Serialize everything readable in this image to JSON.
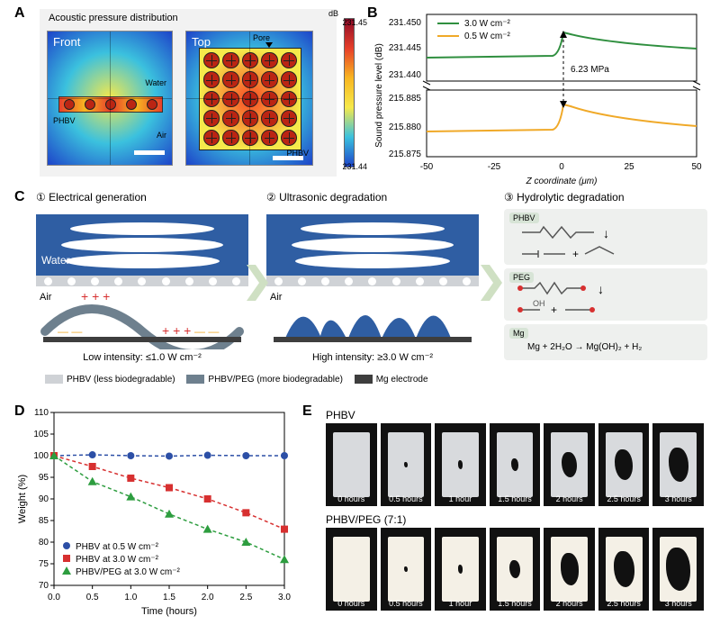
{
  "panelA": {
    "title": "Acoustic pressure distribution",
    "front_label": "Front",
    "top_label": "Top",
    "water_label": "Water",
    "air_label": "Air",
    "phbv_label": "PHBV",
    "pore_label": "Pore",
    "cbar_unit": "dB",
    "cbar_max": "231.45",
    "cbar_min": "231.44",
    "colors": {
      "heatmap_stops": [
        "#8c0b28",
        "#e73f2a",
        "#f8b621",
        "#f6e94b",
        "#3bc1de",
        "#1d44c9"
      ]
    }
  },
  "panelB": {
    "ylabel": "Sound pressure level (dB)",
    "xlabel": "Z coordinate (μm)",
    "series": [
      {
        "name": "3.0 W cm⁻²",
        "color": "#2f8f3f"
      },
      {
        "name": "0.5 W cm⁻²",
        "color": "#f0a928"
      }
    ],
    "gap_label": "6.23 MPa",
    "xticks": [
      "-50",
      "-25",
      "0",
      "25",
      "50"
    ],
    "yticks_top": [
      "231.440",
      "231.445",
      "231.450"
    ],
    "yticks_bot": [
      "215.875",
      "215.880",
      "215.885"
    ]
  },
  "panelC": {
    "sub1_title": "① Electrical generation",
    "sub2_title": "② Ultrasonic degradation",
    "sub3_title": "③ Hydrolytic degradation",
    "water": "Water",
    "air": "Air",
    "low_intensity": "Low intensity: ≤1.0 W cm⁻²",
    "high_intensity": "High intensity: ≥3.0 W cm⁻²",
    "legend1": "PHBV (less biodegradable)",
    "legend2": "PHBV/PEG (more biodegradable)",
    "legend3": "Mg electrode",
    "mat1": "PHBV",
    "mat2": "PEG",
    "mat3": "Mg",
    "mg_eq": "Mg + 2H₂O → Mg(OH)₂ + H₂",
    "colors": {
      "water": "#2f5ea3",
      "phbv": "#cfd2d6",
      "phbv_peg": "#6e808e",
      "mg": "#3e3e3e"
    }
  },
  "panelD": {
    "ylabel": "Weight (%)",
    "xlabel": "Time (hours)",
    "xticks": [
      "0.0",
      "0.5",
      "1.0",
      "1.5",
      "2.0",
      "2.5",
      "3.0"
    ],
    "yticks": [
      "70",
      "75",
      "80",
      "85",
      "90",
      "95",
      "100",
      "105",
      "110"
    ],
    "series": [
      {
        "name": "PHBV at 0.5 W cm⁻²",
        "color": "#2c4fa6",
        "marker": "circle",
        "y": [
          100,
          100.2,
          100,
          99.9,
          100.1,
          100,
          100
        ]
      },
      {
        "name": "PHBV at 3.0 W cm⁻²",
        "color": "#d73030",
        "marker": "square",
        "y": [
          100,
          97.5,
          94.8,
          92.6,
          90,
          86.8,
          83
        ]
      },
      {
        "name": "PHBV/PEG at 3.0 W cm⁻²",
        "color": "#2d9d3f",
        "marker": "triangle",
        "y": [
          100,
          94,
          90.5,
          86.5,
          83,
          80,
          76
        ]
      }
    ],
    "ylim": [
      70,
      110
    ]
  },
  "panelE": {
    "row1_label": "PHBV",
    "row2_label": "PHBV/PEG (7:1)",
    "times": [
      "0 hours",
      "0.5 hours",
      "1 hour",
      "1.5 hours",
      "2 hours",
      "2.5 hours",
      "3 hours"
    ],
    "film_color_row1": "#d8dadd",
    "film_color_row2": "#f4f0e6",
    "hole_fracs_row1": [
      0,
      0.01,
      0.02,
      0.05,
      0.2,
      0.28,
      0.35
    ],
    "hole_fracs_row2": [
      0,
      0.01,
      0.02,
      0.1,
      0.3,
      0.4,
      0.55
    ]
  },
  "labels": {
    "A": "A",
    "B": "B",
    "C": "C",
    "D": "D",
    "E": "E"
  }
}
